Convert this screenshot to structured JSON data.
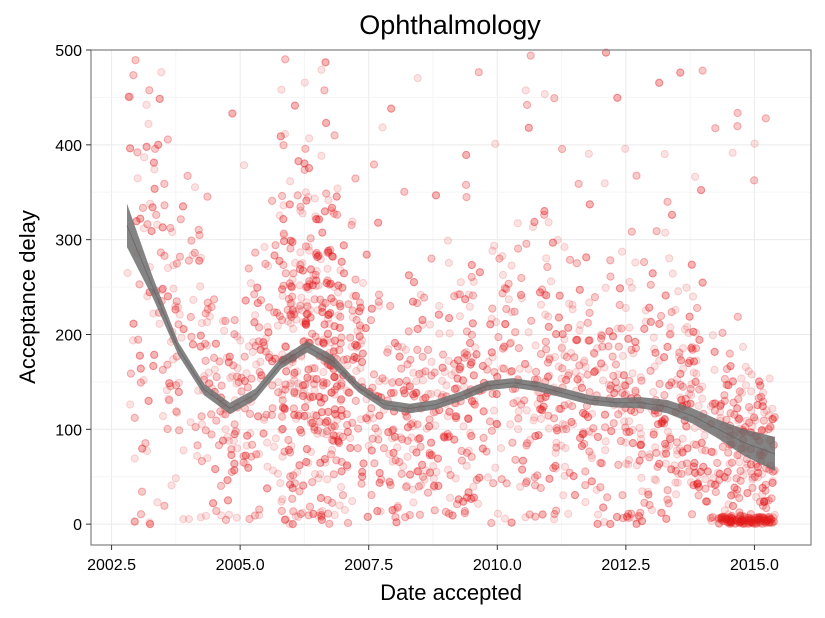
{
  "chart_data": {
    "type": "scatter",
    "title": "Ophthalmology",
    "xlabel": "Date accepted",
    "ylabel": "Acceptance delay",
    "xlim": [
      2002.1,
      2016.1
    ],
    "ylim": [
      -22,
      500
    ],
    "x_ticks": [
      2002.5,
      2005.0,
      2007.5,
      2010.0,
      2012.5,
      2015.0
    ],
    "x_tick_labels": [
      "2002.5",
      "2005.0",
      "2007.5",
      "2010.0",
      "2012.5",
      "2015.0"
    ],
    "y_ticks": [
      0,
      100,
      200,
      300,
      400,
      500
    ],
    "y_tick_labels": [
      "0",
      "100",
      "200",
      "300",
      "400",
      "500"
    ],
    "grid": true,
    "legend": "none",
    "colors": {
      "points": "#e41a1c",
      "smooth_band": "#6e6e6e",
      "grid": "#ebebeb",
      "panel_border": "#7f7f7f"
    },
    "point_alpha": 0.12,
    "points_summary": {
      "approx_count": 3500,
      "x_range": [
        2002.8,
        2015.4
      ],
      "y_range": [
        0,
        500
      ],
      "dense_regions": [
        {
          "x": [
            2005.8,
            2007.0
          ],
          "y": [
            50,
            280
          ]
        },
        {
          "x": [
            2014.3,
            2014.9
          ],
          "y": [
            0,
            10
          ]
        }
      ]
    },
    "smooth_series": {
      "name": "",
      "x": [
        2002.8,
        2003.3,
        2003.8,
        2004.3,
        2004.8,
        2005.3,
        2005.8,
        2006.3,
        2006.8,
        2007.3,
        2007.8,
        2008.3,
        2008.8,
        2009.3,
        2009.8,
        2010.3,
        2010.8,
        2011.3,
        2011.8,
        2012.3,
        2012.8,
        2013.3,
        2013.8,
        2014.3,
        2014.8,
        2015.4
      ],
      "y": [
        315,
        250,
        185,
        142,
        122,
        137,
        170,
        187,
        172,
        144,
        126,
        122,
        126,
        135,
        146,
        149,
        145,
        138,
        131,
        128,
        128,
        124,
        114,
        100,
        86,
        74
      ],
      "lower": [
        292,
        239,
        178,
        136,
        116,
        131,
        164,
        181,
        166,
        139,
        121,
        117,
        121,
        130,
        141,
        144,
        140,
        133,
        126,
        123,
        122,
        117,
        106,
        90,
        72,
        56
      ],
      "upper": [
        338,
        261,
        192,
        148,
        128,
        143,
        176,
        193,
        178,
        149,
        131,
        127,
        131,
        140,
        151,
        154,
        150,
        143,
        136,
        133,
        134,
        131,
        122,
        110,
        100,
        92
      ]
    }
  }
}
